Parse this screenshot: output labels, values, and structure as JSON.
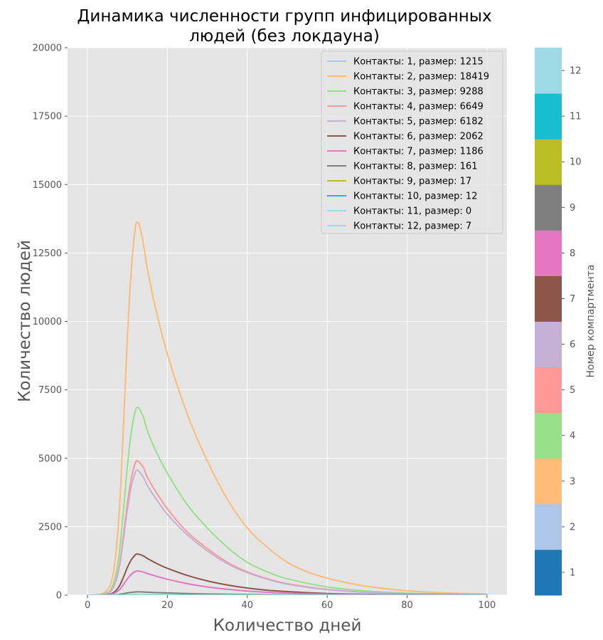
{
  "chart_data": {
    "type": "line",
    "title_line1": "Динамика численности групп инфицированных",
    "title_line2": "людей (без локдауна)",
    "xlabel": "Количество дней",
    "ylabel": "Количество людей",
    "xlim": [
      -5,
      105
    ],
    "ylim": [
      0,
      20000
    ],
    "x_ticks": [
      0,
      20,
      40,
      60,
      80,
      100
    ],
    "y_ticks": [
      0,
      2500,
      5000,
      7500,
      10000,
      12500,
      15000,
      17500,
      20000
    ],
    "grid": true,
    "legend_position": "top-right",
    "peak_day": 12.5,
    "series": [
      {
        "name": "Контакты: 1, размер: 1215",
        "color": "#aec7e8",
        "x": [
          0,
          5,
          8,
          10,
          12.5,
          15,
          20,
          30,
          40,
          60,
          80,
          100
        ],
        "y": [
          0,
          3,
          10,
          15,
          18,
          16,
          12,
          6,
          3,
          1,
          0,
          0
        ]
      },
      {
        "name": "Контакты: 2, размер: 18419",
        "color": "#ffbb78",
        "x": [
          0,
          3,
          5,
          6,
          7,
          8,
          9,
          10,
          11,
          12,
          12.5,
          13,
          14,
          15,
          17,
          20,
          25,
          30,
          35,
          40,
          45,
          50,
          55,
          60,
          65,
          70,
          80,
          90,
          100
        ],
        "y": [
          0,
          20,
          200,
          500,
          1400,
          3200,
          6200,
          9500,
          12000,
          13450,
          13600,
          13500,
          12800,
          11900,
          10500,
          8800,
          6600,
          4900,
          3500,
          2450,
          1750,
          1200,
          850,
          620,
          450,
          320,
          160,
          80,
          40
        ]
      },
      {
        "name": "Контакты: 3, размер: 9288",
        "color": "#98df8a",
        "x": [
          0,
          3,
          5,
          6,
          7,
          8,
          9,
          10,
          11,
          12,
          12.5,
          13,
          14,
          15,
          17,
          20,
          25,
          30,
          35,
          40,
          45,
          50,
          60,
          70,
          80,
          90,
          100
        ],
        "y": [
          0,
          10,
          100,
          250,
          700,
          1600,
          3100,
          4750,
          6000,
          6750,
          6850,
          6800,
          6500,
          6000,
          5300,
          4450,
          3300,
          2450,
          1750,
          1200,
          850,
          600,
          300,
          150,
          75,
          40,
          20
        ]
      },
      {
        "name": "Контакты: 4, размер: 6649",
        "color": "#ff9896",
        "x": [
          0,
          3,
          5,
          6,
          7,
          8,
          9,
          10,
          11,
          12,
          12.5,
          13,
          14,
          15,
          17,
          20,
          25,
          30,
          35,
          40,
          45,
          50,
          60,
          70,
          80,
          90,
          100
        ],
        "y": [
          0,
          8,
          70,
          180,
          500,
          1150,
          2200,
          3400,
          4300,
          4850,
          4900,
          4850,
          4650,
          4300,
          3800,
          3150,
          2300,
          1700,
          1200,
          850,
          600,
          420,
          210,
          100,
          50,
          25,
          12
        ]
      },
      {
        "name": "Контакты: 5, размер: 6182",
        "color": "#c5b0d5",
        "x": [
          0,
          3,
          5,
          6,
          7,
          8,
          9,
          10,
          11,
          12,
          12.5,
          13,
          14,
          15,
          17,
          20,
          25,
          30,
          35,
          40,
          45,
          50,
          60,
          70,
          80,
          90,
          100
        ],
        "y": [
          0,
          7,
          65,
          170,
          470,
          1050,
          2050,
          3150,
          4000,
          4500,
          4560,
          4500,
          4300,
          4000,
          3550,
          2950,
          2200,
          1620,
          1150,
          820,
          580,
          400,
          200,
          100,
          50,
          25,
          12
        ]
      },
      {
        "name": "Контакты: 6, размер: 2062",
        "color": "#8c564b",
        "x": [
          0,
          3,
          5,
          6,
          7,
          8,
          9,
          10,
          11,
          12,
          12.5,
          13,
          14,
          15,
          17,
          20,
          25,
          30,
          35,
          40,
          45,
          50,
          60,
          70,
          80,
          100
        ],
        "y": [
          0,
          3,
          20,
          55,
          150,
          340,
          660,
          1020,
          1300,
          1480,
          1500,
          1490,
          1430,
          1340,
          1180,
          980,
          720,
          520,
          370,
          260,
          180,
          130,
          60,
          30,
          15,
          4
        ]
      },
      {
        "name": "Контакты: 7, размер: 1186",
        "color": "#e377c2",
        "x": [
          0,
          3,
          5,
          6,
          7,
          8,
          9,
          10,
          11,
          12,
          12.5,
          13,
          14,
          15,
          17,
          20,
          25,
          30,
          35,
          40,
          45,
          50,
          60,
          70,
          80,
          100
        ],
        "y": [
          0,
          2,
          12,
          32,
          90,
          200,
          390,
          600,
          770,
          870,
          880,
          875,
          840,
          790,
          700,
          580,
          420,
          300,
          215,
          150,
          105,
          75,
          35,
          17,
          8,
          2
        ]
      },
      {
        "name": "Контакты: 8, размер: 161",
        "color": "#7f7f7f",
        "x": [
          0,
          5,
          7,
          8,
          9,
          10,
          11,
          12,
          12.5,
          13,
          15,
          17,
          20,
          25,
          30,
          40,
          50,
          60,
          80,
          100
        ],
        "y": [
          0,
          2,
          12,
          28,
          55,
          82,
          105,
          118,
          120,
          119,
          108,
          95,
          80,
          58,
          42,
          22,
          11,
          5,
          1,
          0
        ]
      },
      {
        "name": "Контакты: 9, размер: 17",
        "color": "#bcbd22",
        "x": [
          0,
          5,
          8,
          10,
          12.5,
          15,
          20,
          30,
          40,
          60,
          80,
          100
        ],
        "y": [
          0,
          1,
          4,
          9,
          12,
          11,
          8,
          4,
          2,
          1,
          0,
          0
        ]
      },
      {
        "name": "Контакты: 10, размер: 12",
        "color": "#17becf",
        "x": [
          0,
          5,
          8,
          10,
          12.5,
          15,
          20,
          30,
          40,
          60,
          80,
          100
        ],
        "y": [
          0,
          1,
          3,
          6,
          9,
          8,
          6,
          3,
          1,
          0,
          0,
          0
        ]
      },
      {
        "name": "Контакты: 11, размер: 0",
        "color": "#9edae5",
        "x": [
          0,
          100
        ],
        "y": [
          0,
          0
        ]
      },
      {
        "name": "Контакты: 12, размер: 7",
        "color": "#9edae5",
        "x": [
          0,
          5,
          8,
          10,
          12.5,
          15,
          20,
          30,
          40,
          60,
          80,
          100
        ],
        "y": [
          0,
          0,
          2,
          4,
          5,
          5,
          3,
          2,
          1,
          0,
          0,
          0
        ]
      }
    ],
    "colorbar": {
      "label": "Номер компартмента",
      "ticks": [
        "1",
        "2",
        "3",
        "4",
        "5",
        "6",
        "7",
        "8",
        "9",
        "10",
        "11",
        "12"
      ],
      "colors": [
        "#1f77b4",
        "#aec7e8",
        "#ffbb78",
        "#98df8a",
        "#ff9896",
        "#c5b0d5",
        "#8c564b",
        "#e377c2",
        "#7f7f7f",
        "#bcbd22",
        "#17becf",
        "#9edae5"
      ]
    }
  }
}
